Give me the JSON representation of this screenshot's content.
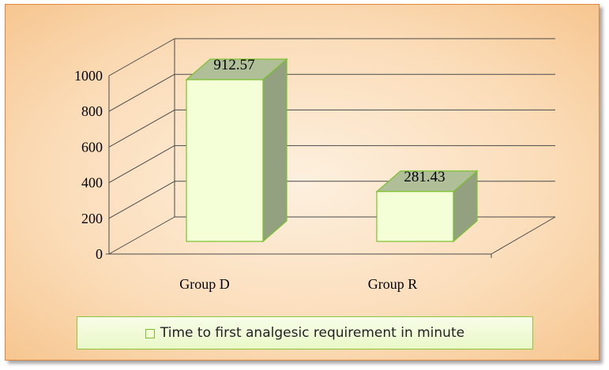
{
  "chart_data": {
    "type": "bar",
    "categories": [
      "Group D",
      "Group R"
    ],
    "series": [
      {
        "name": "Time to first analgesic requirement in minute",
        "values": [
          912.57,
          281.43
        ]
      }
    ],
    "data_labels": [
      "912.57",
      "281.43"
    ],
    "y_ticks": [
      "0",
      "200",
      "400",
      "600",
      "800",
      "1000"
    ],
    "ylim": [
      0,
      1000
    ],
    "grid": true,
    "legend_position": "bottom",
    "style": "3d-column",
    "colors": {
      "bar_front": "#f4ffd8",
      "bar_side": "#93a180",
      "bar_top": "#b1bf98",
      "bar_border": "#7cc12f",
      "frame_border": "#e0853a",
      "background": "#fbdcb8"
    }
  }
}
